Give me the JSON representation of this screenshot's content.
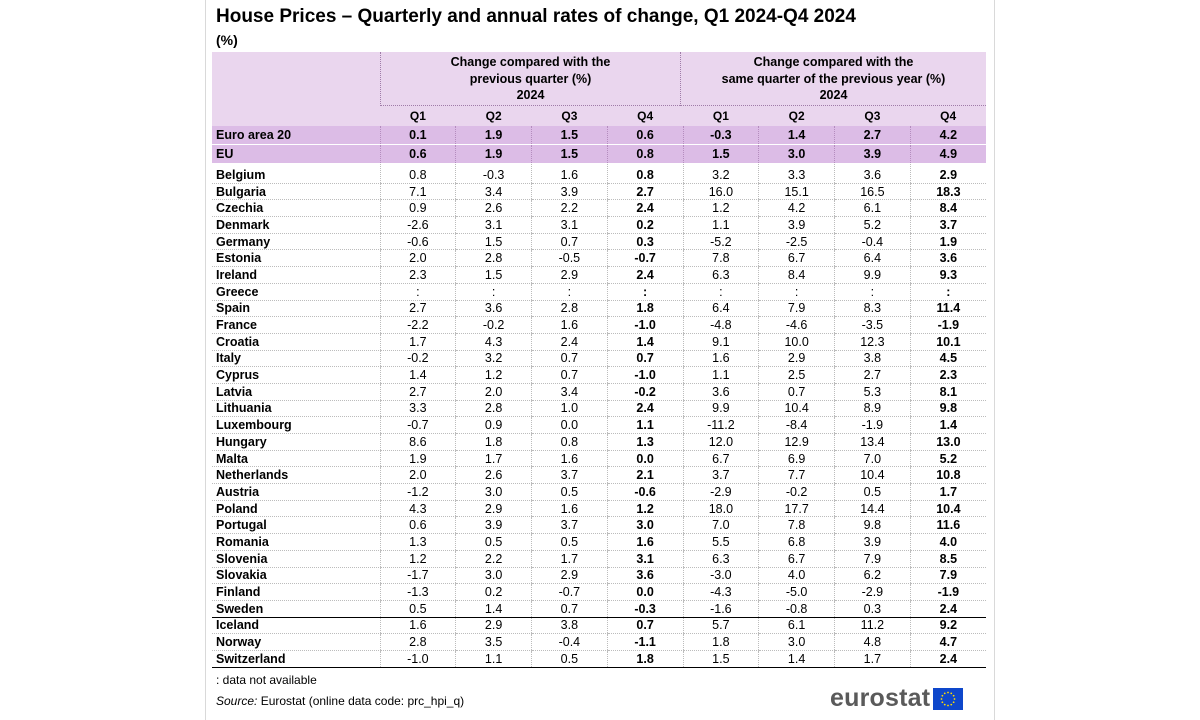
{
  "title": "House Prices – Quarterly and annual rates of change, Q1 2024-Q4 2024",
  "unit": "(%)",
  "header": {
    "left_line1": "Change compared with the",
    "left_line2": "previous quarter (%)",
    "left_year": "2024",
    "right_line1": "Change compared with the",
    "right_line2": "same quarter of the previous year (%)",
    "right_year": "2024",
    "quarters": [
      "Q1",
      "Q2",
      "Q3",
      "Q4",
      "Q1",
      "Q2",
      "Q3",
      "Q4"
    ]
  },
  "aggregates": [
    {
      "name": "Euro area 20",
      "values": [
        "0.1",
        "1.9",
        "1.5",
        "0.6",
        "-0.3",
        "1.4",
        "2.7",
        "4.2"
      ]
    },
    {
      "name": "EU",
      "values": [
        "0.6",
        "1.9",
        "1.5",
        "0.8",
        "1.5",
        "3.0",
        "3.9",
        "4.9"
      ]
    }
  ],
  "countries": [
    {
      "name": "Belgium",
      "values": [
        "0.8",
        "-0.3",
        "1.6",
        "0.8",
        "3.2",
        "3.3",
        "3.6",
        "2.9"
      ]
    },
    {
      "name": "Bulgaria",
      "values": [
        "7.1",
        "3.4",
        "3.9",
        "2.7",
        "16.0",
        "15.1",
        "16.5",
        "18.3"
      ]
    },
    {
      "name": "Czechia",
      "values": [
        "0.9",
        "2.6",
        "2.2",
        "2.4",
        "1.2",
        "4.2",
        "6.1",
        "8.4"
      ]
    },
    {
      "name": "Denmark",
      "values": [
        "-2.6",
        "3.1",
        "3.1",
        "0.2",
        "1.1",
        "3.9",
        "5.2",
        "3.7"
      ]
    },
    {
      "name": "Germany",
      "values": [
        "-0.6",
        "1.5",
        "0.7",
        "0.3",
        "-5.2",
        "-2.5",
        "-0.4",
        "1.9"
      ]
    },
    {
      "name": "Estonia",
      "values": [
        "2.0",
        "2.8",
        "-0.5",
        "-0.7",
        "7.8",
        "6.7",
        "6.4",
        "3.6"
      ]
    },
    {
      "name": "Ireland",
      "values": [
        "2.3",
        "1.5",
        "2.9",
        "2.4",
        "6.3",
        "8.4",
        "9.9",
        "9.3"
      ]
    },
    {
      "name": "Greece",
      "values": [
        ":",
        ":",
        ":",
        ":",
        ":",
        ":",
        ":",
        ":"
      ]
    },
    {
      "name": "Spain",
      "values": [
        "2.7",
        "3.6",
        "2.8",
        "1.8",
        "6.4",
        "7.9",
        "8.3",
        "11.4"
      ]
    },
    {
      "name": "France",
      "values": [
        "-2.2",
        "-0.2",
        "1.6",
        "-1.0",
        "-4.8",
        "-4.6",
        "-3.5",
        "-1.9"
      ]
    },
    {
      "name": "Croatia",
      "values": [
        "1.7",
        "4.3",
        "2.4",
        "1.4",
        "9.1",
        "10.0",
        "12.3",
        "10.1"
      ]
    },
    {
      "name": "Italy",
      "values": [
        "-0.2",
        "3.2",
        "0.7",
        "0.7",
        "1.6",
        "2.9",
        "3.8",
        "4.5"
      ]
    },
    {
      "name": "Cyprus",
      "values": [
        "1.4",
        "1.2",
        "0.7",
        "-1.0",
        "1.1",
        "2.5",
        "2.7",
        "2.3"
      ]
    },
    {
      "name": "Latvia",
      "values": [
        "2.7",
        "2.0",
        "3.4",
        "-0.2",
        "3.6",
        "0.7",
        "5.3",
        "8.1"
      ]
    },
    {
      "name": "Lithuania",
      "values": [
        "3.3",
        "2.8",
        "1.0",
        "2.4",
        "9.9",
        "10.4",
        "8.9",
        "9.8"
      ]
    },
    {
      "name": "Luxembourg",
      "values": [
        "-0.7",
        "0.9",
        "0.0",
        "1.1",
        "-11.2",
        "-8.4",
        "-1.9",
        "1.4"
      ]
    },
    {
      "name": "Hungary",
      "values": [
        "8.6",
        "1.8",
        "0.8",
        "1.3",
        "12.0",
        "12.9",
        "13.4",
        "13.0"
      ]
    },
    {
      "name": "Malta",
      "values": [
        "1.9",
        "1.7",
        "1.6",
        "0.0",
        "6.7",
        "6.9",
        "7.0",
        "5.2"
      ]
    },
    {
      "name": "Netherlands",
      "values": [
        "2.0",
        "2.6",
        "3.7",
        "2.1",
        "3.7",
        "7.7",
        "10.4",
        "10.8"
      ]
    },
    {
      "name": "Austria",
      "values": [
        "-1.2",
        "3.0",
        "0.5",
        "-0.6",
        "-2.9",
        "-0.2",
        "0.5",
        "1.7"
      ]
    },
    {
      "name": "Poland",
      "values": [
        "4.3",
        "2.9",
        "1.6",
        "1.2",
        "18.0",
        "17.7",
        "14.4",
        "10.4"
      ]
    },
    {
      "name": "Portugal",
      "values": [
        "0.6",
        "3.9",
        "3.7",
        "3.0",
        "7.0",
        "7.8",
        "9.8",
        "11.6"
      ]
    },
    {
      "name": "Romania",
      "values": [
        "1.3",
        "0.5",
        "0.5",
        "1.6",
        "5.5",
        "6.8",
        "3.9",
        "4.0"
      ]
    },
    {
      "name": "Slovenia",
      "values": [
        "1.2",
        "2.2",
        "1.7",
        "3.1",
        "6.3",
        "6.7",
        "7.9",
        "8.5"
      ]
    },
    {
      "name": "Slovakia",
      "values": [
        "-1.7",
        "3.0",
        "2.9",
        "3.6",
        "-3.0",
        "4.0",
        "6.2",
        "7.9"
      ]
    },
    {
      "name": "Finland",
      "values": [
        "-1.3",
        "0.2",
        "-0.7",
        "0.0",
        "-4.3",
        "-5.0",
        "-2.9",
        "-1.9"
      ]
    },
    {
      "name": "Sweden",
      "values": [
        "0.5",
        "1.4",
        "0.7",
        "-0.3",
        "-1.6",
        "-0.8",
        "0.3",
        "2.4"
      ]
    }
  ],
  "efta": [
    {
      "name": "Iceland",
      "values": [
        "1.6",
        "2.9",
        "3.8",
        "0.7",
        "5.7",
        "6.1",
        "11.2",
        "9.2"
      ]
    },
    {
      "name": "Norway",
      "values": [
        "2.8",
        "3.5",
        "-0.4",
        "-1.1",
        "1.8",
        "3.0",
        "4.8",
        "4.7"
      ]
    },
    {
      "name": "Switzerland",
      "values": [
        "-1.0",
        "1.1",
        "0.5",
        "1.8",
        "1.5",
        "1.4",
        "1.7",
        "2.4"
      ]
    }
  ],
  "legend": ":  data not available",
  "source_label": "Source:",
  "source_text": " Eurostat (online data code: prc_hpi_q)",
  "logo_text": "eurostat",
  "colors": {
    "header_bg": "#ead6ee",
    "aggregate_bg": "#dcbce6",
    "flag_blue": "#0e47cb",
    "flag_star": "#ffdd00"
  }
}
